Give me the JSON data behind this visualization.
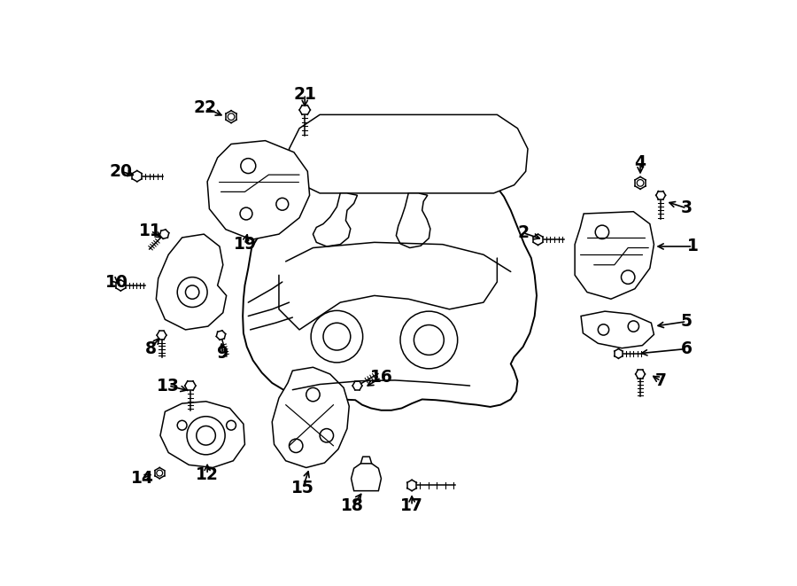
{
  "background": "#ffffff",
  "line_color": "#000000",
  "figsize": [
    9.0,
    6.61
  ],
  "dpi": 100,
  "lw": 1.1
}
